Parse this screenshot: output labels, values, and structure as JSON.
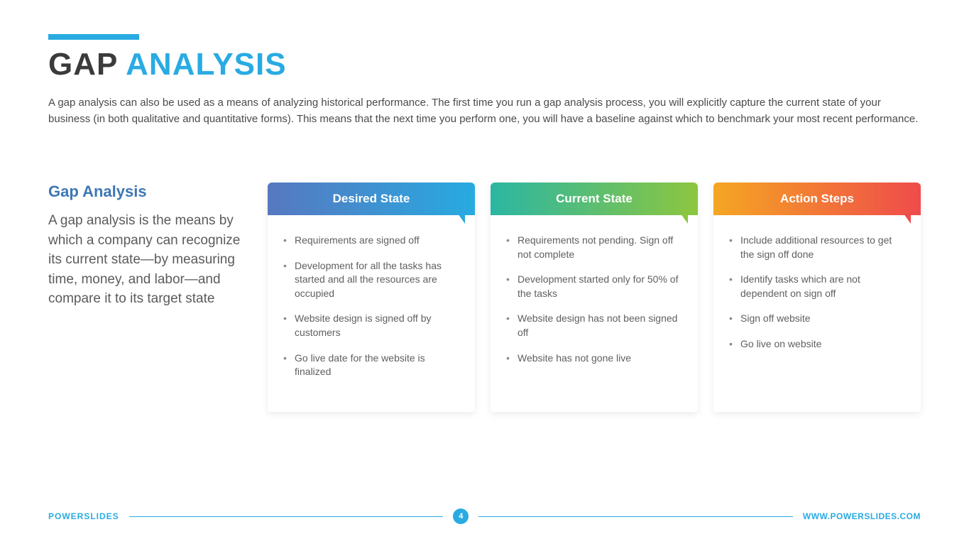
{
  "header": {
    "title_part1": "GAP ",
    "title_part2": "ANALYSIS",
    "accent_color": "#29abe2",
    "intro": "A gap analysis can also be used as a means of analyzing historical performance. The first time you run a gap analysis process, you will explicitly capture the current state of your business (in both qualitative and quantitative forms). This means that the next time you perform one, you will have a baseline against which to benchmark your most recent performance."
  },
  "sidebar": {
    "title": "Gap Analysis",
    "title_color": "#3e77b5",
    "text": "A gap analysis is the means by which a company can recognize its current state—by measuring time, money, and labor—and compare it to its target state"
  },
  "cards": [
    {
      "title": "Desired State",
      "gradient_from": "#5778c0",
      "gradient_to": "#27aae1",
      "tail_color": "#27aae1",
      "items": [
        "Requirements are signed off",
        "Development for all the tasks has started and all the resources are occupied",
        "Website design is signed off by customers",
        "Go live date for the website is finalized"
      ]
    },
    {
      "title": "Current State",
      "gradient_from": "#2bb6a3",
      "gradient_to": "#8dc63f",
      "tail_color": "#8dc63f",
      "items": [
        "Requirements not pending. Sign off not complete",
        "Development started only for 50% of the tasks",
        "Website design has not been signed off",
        "Website has not gone live"
      ]
    },
    {
      "title": "Action Steps",
      "gradient_from": "#f5a623",
      "gradient_to": "#ef4b4b",
      "tail_color": "#ef4b4b",
      "items": [
        "Include additional resources to get the sign off done",
        "Identify tasks which are not dependent on sign off",
        "Sign off website",
        "Go live on website"
      ]
    }
  ],
  "footer": {
    "brand_part1": "POWER",
    "brand_part2": "SLIDES",
    "page_number": "4",
    "url": "WWW.POWERSLIDES.COM",
    "line_color": "#29abe2"
  }
}
